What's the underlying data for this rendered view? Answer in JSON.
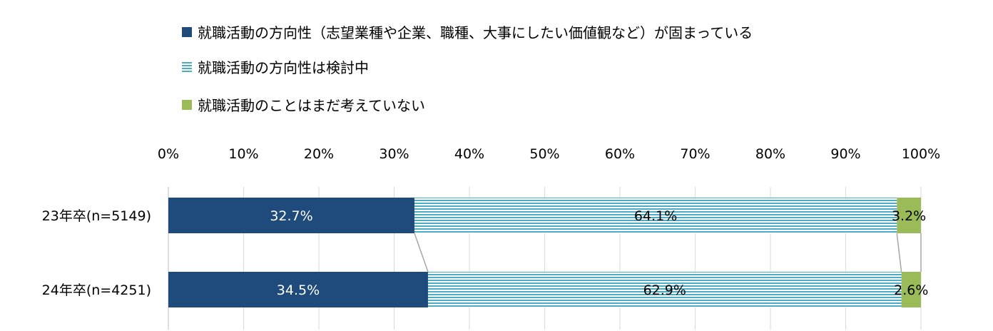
{
  "chart_data": {
    "type": "bar",
    "orientation": "horizontal",
    "stacked": true,
    "categories": [
      "23年卒(n=5149)",
      "24年卒(n=4251)"
    ],
    "series": [
      {
        "name": "就職活動の方向性（志望業種や企業、職種、大事にしたい価値観など）が固まっている",
        "values": [
          32.7,
          34.5
        ],
        "labels": [
          "32.7%",
          "34.5%"
        ],
        "color": "#1f4a7c",
        "pattern": "solid"
      },
      {
        "name": "就職活動の方向性は検討中",
        "values": [
          64.1,
          62.9
        ],
        "labels": [
          "64.1%",
          "62.9%"
        ],
        "color": "#4bacc6",
        "pattern": "horizontal-stripes"
      },
      {
        "name": "就職活動のことはまだ考えていない",
        "values": [
          3.2,
          2.6
        ],
        "labels": [
          "3.2%",
          "2.6%"
        ],
        "color": "#9bbb59",
        "pattern": "solid"
      }
    ],
    "x_ticks": [
      "0%",
      "10%",
      "20%",
      "30%",
      "40%",
      "50%",
      "60%",
      "70%",
      "80%",
      "90%",
      "100%"
    ],
    "xlim": [
      0,
      100
    ],
    "axis_position": "top",
    "grid": true,
    "legend_position": "top",
    "series_lines": true
  }
}
